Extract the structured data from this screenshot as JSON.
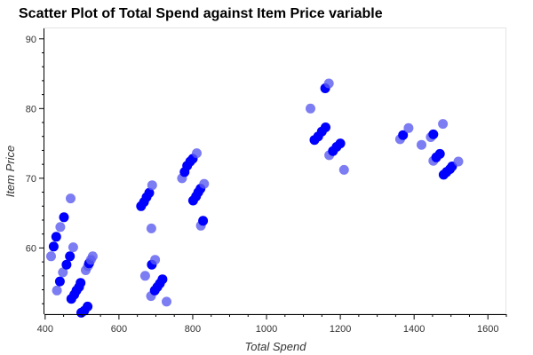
{
  "chart_data": {
    "type": "scatter",
    "title": "Scatter Plot of Total Spend against Item Price variable",
    "xlabel": "Total Spend",
    "ylabel": "Item Price",
    "xlim": [
      398,
      1650
    ],
    "ylim": [
      50.5,
      91.5
    ],
    "xticks": [
      400,
      600,
      800,
      1000,
      1200,
      1400,
      1600
    ],
    "yticks": [
      60,
      70,
      80,
      90
    ],
    "grid": false,
    "colors": {
      "opaque": "#0000ff",
      "faded": "#5b5bf0",
      "axis": "#000000",
      "frame": "#e5e5e5"
    },
    "points": [
      {
        "x": 416,
        "y": 58.8,
        "faded": true
      },
      {
        "x": 423,
        "y": 60.2,
        "faded": false
      },
      {
        "x": 430,
        "y": 61.6,
        "faded": false
      },
      {
        "x": 432,
        "y": 53.9,
        "faded": true
      },
      {
        "x": 440,
        "y": 55.2,
        "faded": false
      },
      {
        "x": 441,
        "y": 63.0,
        "faded": true
      },
      {
        "x": 448,
        "y": 56.5,
        "faded": true
      },
      {
        "x": 451,
        "y": 64.4,
        "faded": false
      },
      {
        "x": 458,
        "y": 57.6,
        "faded": false
      },
      {
        "x": 467,
        "y": 58.8,
        "faded": false
      },
      {
        "x": 469,
        "y": 67.1,
        "faded": true
      },
      {
        "x": 471,
        "y": 52.7,
        "faded": false
      },
      {
        "x": 476,
        "y": 60.1,
        "faded": true
      },
      {
        "x": 479,
        "y": 53.3,
        "faded": false
      },
      {
        "x": 485,
        "y": 53.9,
        "faded": false
      },
      {
        "x": 492,
        "y": 54.4,
        "faded": false
      },
      {
        "x": 496,
        "y": 55.0,
        "faded": false
      },
      {
        "x": 498,
        "y": 50.7,
        "faded": false
      },
      {
        "x": 506,
        "y": 51.0,
        "faded": false
      },
      {
        "x": 510,
        "y": 56.8,
        "faded": true
      },
      {
        "x": 515,
        "y": 51.6,
        "faded": false
      },
      {
        "x": 516,
        "y": 57.4,
        "faded": true
      },
      {
        "x": 519,
        "y": 57.8,
        "faded": false
      },
      {
        "x": 524,
        "y": 58.3,
        "faded": true
      },
      {
        "x": 529,
        "y": 58.8,
        "faded": true
      },
      {
        "x": 660,
        "y": 66.0,
        "faded": false
      },
      {
        "x": 668,
        "y": 66.6,
        "faded": false
      },
      {
        "x": 671,
        "y": 56.0,
        "faded": true
      },
      {
        "x": 675,
        "y": 67.3,
        "faded": false
      },
      {
        "x": 682,
        "y": 67.9,
        "faded": false
      },
      {
        "x": 687,
        "y": 53.1,
        "faded": true
      },
      {
        "x": 688,
        "y": 62.8,
        "faded": true
      },
      {
        "x": 689,
        "y": 57.6,
        "faded": false
      },
      {
        "x": 690,
        "y": 69.0,
        "faded": true
      },
      {
        "x": 697,
        "y": 53.9,
        "faded": false
      },
      {
        "x": 698,
        "y": 58.3,
        "faded": true
      },
      {
        "x": 704,
        "y": 54.4,
        "faded": false
      },
      {
        "x": 711,
        "y": 54.9,
        "faded": false
      },
      {
        "x": 718,
        "y": 55.5,
        "faded": false
      },
      {
        "x": 729,
        "y": 52.3,
        "faded": true
      },
      {
        "x": 771,
        "y": 70.0,
        "faded": true
      },
      {
        "x": 778,
        "y": 70.9,
        "faded": false
      },
      {
        "x": 785,
        "y": 71.8,
        "faded": false
      },
      {
        "x": 793,
        "y": 72.4,
        "faded": false
      },
      {
        "x": 800,
        "y": 72.8,
        "faded": false
      },
      {
        "x": 801,
        "y": 66.8,
        "faded": false
      },
      {
        "x": 809,
        "y": 67.4,
        "faded": false
      },
      {
        "x": 811,
        "y": 73.6,
        "faded": true
      },
      {
        "x": 815,
        "y": 68.0,
        "faded": false
      },
      {
        "x": 821,
        "y": 68.5,
        "faded": false
      },
      {
        "x": 822,
        "y": 63.2,
        "faded": true
      },
      {
        "x": 828,
        "y": 63.9,
        "faded": false
      },
      {
        "x": 831,
        "y": 69.2,
        "faded": true
      },
      {
        "x": 1119,
        "y": 80.0,
        "faded": true
      },
      {
        "x": 1130,
        "y": 75.5,
        "faded": false
      },
      {
        "x": 1140,
        "y": 76.0,
        "faded": false
      },
      {
        "x": 1150,
        "y": 76.7,
        "faded": false
      },
      {
        "x": 1160,
        "y": 77.3,
        "faded": false
      },
      {
        "x": 1159,
        "y": 82.9,
        "faded": false
      },
      {
        "x": 1169,
        "y": 83.6,
        "faded": true
      },
      {
        "x": 1170,
        "y": 73.3,
        "faded": true
      },
      {
        "x": 1180,
        "y": 73.9,
        "faded": false
      },
      {
        "x": 1190,
        "y": 74.5,
        "faded": false
      },
      {
        "x": 1200,
        "y": 75.0,
        "faded": false
      },
      {
        "x": 1210,
        "y": 71.2,
        "faded": true
      },
      {
        "x": 1362,
        "y": 75.6,
        "faded": true
      },
      {
        "x": 1370,
        "y": 76.2,
        "faded": false
      },
      {
        "x": 1385,
        "y": 77.2,
        "faded": true
      },
      {
        "x": 1420,
        "y": 74.8,
        "faded": true
      },
      {
        "x": 1445,
        "y": 75.9,
        "faded": true
      },
      {
        "x": 1452,
        "y": 76.3,
        "faded": false
      },
      {
        "x": 1452,
        "y": 72.5,
        "faded": true
      },
      {
        "x": 1460,
        "y": 73.0,
        "faded": false
      },
      {
        "x": 1470,
        "y": 73.5,
        "faded": false
      },
      {
        "x": 1478,
        "y": 77.8,
        "faded": true
      },
      {
        "x": 1480,
        "y": 70.5,
        "faded": false
      },
      {
        "x": 1488,
        "y": 70.9,
        "faded": false
      },
      {
        "x": 1497,
        "y": 71.3,
        "faded": false
      },
      {
        "x": 1503,
        "y": 71.7,
        "faded": false
      },
      {
        "x": 1520,
        "y": 72.4,
        "faded": true
      }
    ]
  }
}
